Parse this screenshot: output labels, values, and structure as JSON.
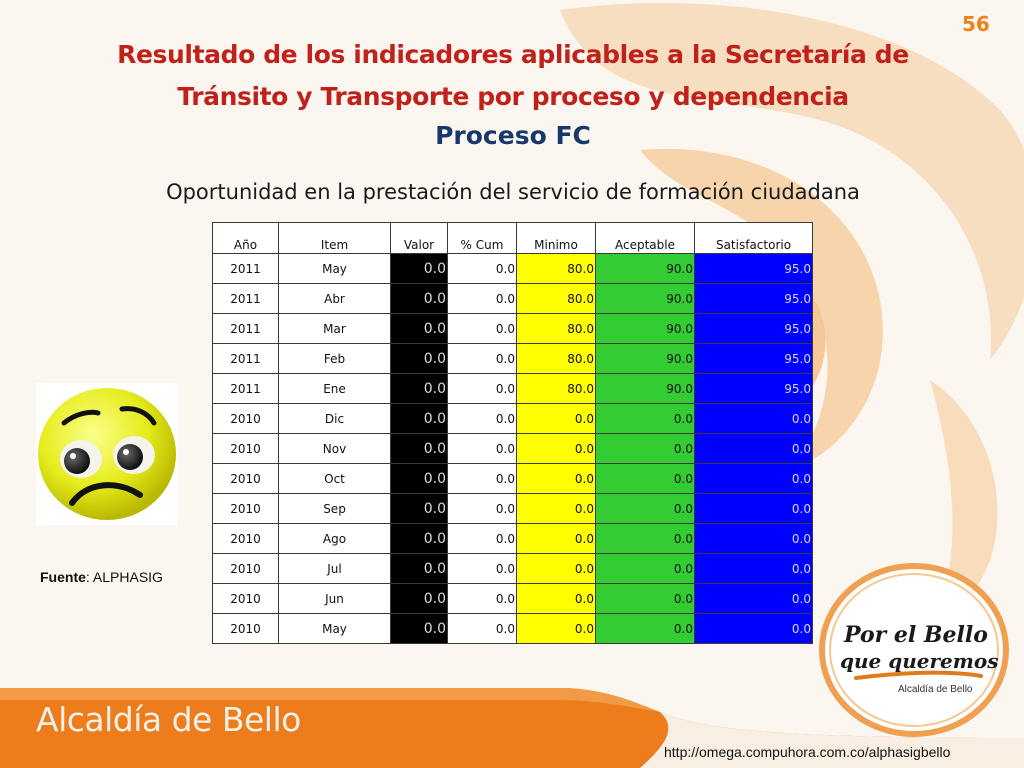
{
  "slide": {
    "page_number": "56",
    "title": "Resultado de los indicadores aplicables a la Secretaría de Tránsito y Transporte por proceso y dependencia",
    "process": "Proceso FC",
    "subtitle": "Oportunidad en la prestación del servicio de formación ciudadana"
  },
  "colors": {
    "title": "#c0211b",
    "process": "#17386a",
    "valor_cell": "#000000",
    "minimo_cell": "#ffff00",
    "aceptable_cell": "#33cc33",
    "satisfactorio_cell": "#0000ff",
    "footer_band": "#ec7c1c"
  },
  "table": {
    "headers": [
      "Año",
      "Item",
      "Valor",
      "% Cum",
      "Minimo",
      "Aceptable",
      "Satisfactorio"
    ],
    "rows": [
      [
        "2011",
        "May",
        "0.0",
        "0.0",
        "80.0",
        "90.0",
        "95.0"
      ],
      [
        "2011",
        "Abr",
        "0.0",
        "0.0",
        "80.0",
        "90.0",
        "95.0"
      ],
      [
        "2011",
        "Mar",
        "0.0",
        "0.0",
        "80.0",
        "90.0",
        "95.0"
      ],
      [
        "2011",
        "Feb",
        "0.0",
        "0.0",
        "80.0",
        "90.0",
        "95.0"
      ],
      [
        "2011",
        "Ene",
        "0.0",
        "0.0",
        "80.0",
        "90.0",
        "95.0"
      ],
      [
        "2010",
        "Dic",
        "0.0",
        "0.0",
        "0.0",
        "0.0",
        "0.0"
      ],
      [
        "2010",
        "Nov",
        "0.0",
        "0.0",
        "0.0",
        "0.0",
        "0.0"
      ],
      [
        "2010",
        "Oct",
        "0.0",
        "0.0",
        "0.0",
        "0.0",
        "0.0"
      ],
      [
        "2010",
        "Sep",
        "0.0",
        "0.0",
        "0.0",
        "0.0",
        "0.0"
      ],
      [
        "2010",
        "Ago",
        "0.0",
        "0.0",
        "0.0",
        "0.0",
        "0.0"
      ],
      [
        "2010",
        "Jul",
        "0.0",
        "0.0",
        "0.0",
        "0.0",
        "0.0"
      ],
      [
        "2010",
        "Jun",
        "0.0",
        "0.0",
        "0.0",
        "0.0",
        "0.0"
      ],
      [
        "2010",
        "May",
        "0.0",
        "0.0",
        "0.0",
        "0.0",
        "0.0"
      ]
    ]
  },
  "indicator": {
    "icon": "sad-face-icon"
  },
  "source": {
    "label": "Fuente",
    "separator": ": ",
    "value": "ALPHASIG"
  },
  "badge": {
    "line1": "Por el Bello",
    "line2": "que queremos",
    "caption": "Alcaldía de Bello"
  },
  "footer": {
    "brand": "Alcaldía de Bello",
    "url": "http://omega.compuhora.com.co/alphasigbello"
  }
}
